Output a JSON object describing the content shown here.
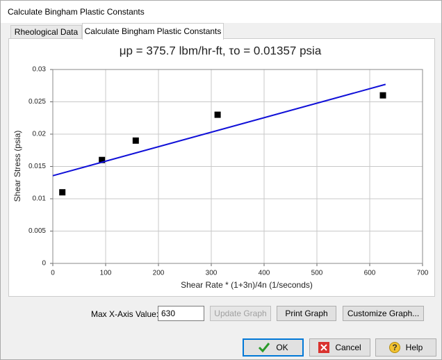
{
  "window": {
    "title": "Calculate Bingham Plastic Constants"
  },
  "tabs": [
    "Rheological Data",
    "Calculate Bingham Plastic Constants"
  ],
  "chart_data": {
    "type": "scatter",
    "title": "μp = 375.7 lbm/hr-ft, τo = 0.01357 psia",
    "x_label": "Shear Rate * (1+3n)/4n (1/seconds)",
    "y_label": "Shear Stress (psia)",
    "xlim": [
      0,
      700
    ],
    "xticks": [
      0,
      100,
      200,
      300,
      400,
      500,
      600,
      700
    ],
    "ylim": [
      0,
      0.03
    ],
    "yticks": [
      0,
      0.005,
      0.01,
      0.015,
      0.02,
      0.025,
      0.03
    ],
    "grid": true,
    "series": [
      {
        "type": "scatter",
        "color": "#000000",
        "x": [
          18,
          93,
          157,
          312,
          625
        ],
        "values": [
          0.011,
          0.016,
          0.019,
          0.023,
          0.026
        ]
      },
      {
        "type": "line",
        "color": "#1010d8",
        "x": [
          0,
          630
        ],
        "values": [
          0.01357,
          0.0277
        ]
      }
    ]
  },
  "controls": {
    "max_x_label": "Max X-Axis Value:",
    "max_x_value": "630",
    "update_graph": "Update Graph",
    "print_graph": "Print Graph",
    "customize_graph": "Customize Graph..."
  },
  "buttons": {
    "ok": "OK",
    "cancel": "Cancel",
    "help": "Help"
  }
}
